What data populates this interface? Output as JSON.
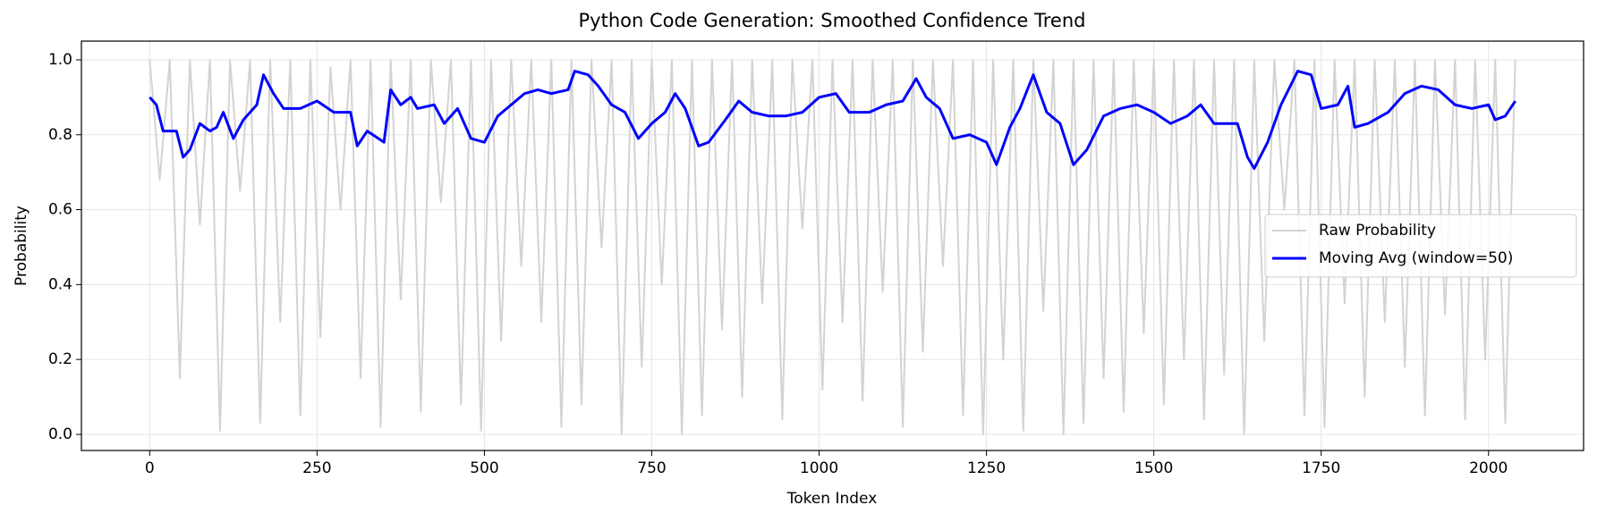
{
  "chart_data": {
    "type": "line",
    "title": "Python Code Generation: Smoothed Confidence Trend",
    "xlabel": "Token Index",
    "ylabel": "Probability",
    "xlim": [
      -102,
      2142
    ],
    "ylim": [
      -0.043,
      1.05
    ],
    "xticks": [
      0,
      250,
      500,
      750,
      1000,
      1250,
      1500,
      1750,
      2000
    ],
    "yticks": [
      {
        "value": 0,
        "label": "0.0"
      },
      0.2,
      0.4,
      0.6,
      0.8,
      {
        "value": 1,
        "label": "1.0"
      }
    ],
    "grid": true,
    "legend": "center right",
    "series": [
      {
        "name": "Raw Probability",
        "color": "#d3d3d3",
        "x": [
          0,
          15,
          30,
          45,
          60,
          75,
          90,
          105,
          120,
          135,
          150,
          165,
          180,
          195,
          210,
          225,
          240,
          255,
          270,
          285,
          300,
          315,
          330,
          345,
          360,
          375,
          390,
          405,
          420,
          435,
          450,
          465,
          480,
          495,
          510,
          525,
          540,
          555,
          570,
          585,
          600,
          615,
          630,
          645,
          660,
          675,
          690,
          705,
          720,
          735,
          750,
          765,
          780,
          795,
          810,
          825,
          840,
          855,
          870,
          885,
          900,
          915,
          930,
          945,
          960,
          975,
          990,
          1005,
          1020,
          1035,
          1050,
          1065,
          1080,
          1095,
          1110,
          1125,
          1140,
          1155,
          1170,
          1185,
          1200,
          1215,
          1230,
          1245,
          1260,
          1275,
          1290,
          1305,
          1320,
          1335,
          1350,
          1365,
          1380,
          1395,
          1410,
          1425,
          1440,
          1455,
          1470,
          1485,
          1500,
          1515,
          1530,
          1545,
          1560,
          1575,
          1590,
          1605,
          1620,
          1635,
          1650,
          1665,
          1680,
          1695,
          1710,
          1725,
          1740,
          1755,
          1770,
          1785,
          1800,
          1815,
          1830,
          1845,
          1860,
          1875,
          1890,
          1905,
          1920,
          1935,
          1950,
          1965,
          1980,
          1995,
          2010,
          2025,
          2040
        ],
        "values": [
          1.0,
          0.68,
          1.0,
          0.15,
          1.0,
          0.56,
          1.0,
          0.01,
          1.0,
          0.65,
          1.0,
          0.03,
          1.0,
          0.3,
          1.0,
          0.05,
          1.0,
          0.26,
          0.98,
          0.6,
          1.0,
          0.15,
          1.0,
          0.02,
          1.0,
          0.36,
          1.0,
          0.06,
          1.0,
          0.62,
          1.0,
          0.08,
          1.0,
          0.01,
          1.0,
          0.25,
          1.0,
          0.45,
          1.0,
          0.3,
          1.0,
          0.02,
          1.0,
          0.08,
          1.0,
          0.5,
          1.0,
          0.0,
          1.0,
          0.18,
          1.0,
          0.4,
          1.0,
          0.0,
          1.0,
          0.05,
          1.0,
          0.28,
          1.0,
          0.1,
          1.0,
          0.35,
          1.0,
          0.04,
          1.0,
          0.55,
          1.0,
          0.12,
          1.0,
          0.3,
          1.0,
          0.09,
          1.0,
          0.38,
          1.0,
          0.02,
          1.0,
          0.22,
          1.0,
          0.45,
          1.0,
          0.05,
          1.0,
          0.0,
          1.0,
          0.2,
          1.0,
          0.01,
          1.0,
          0.33,
          1.0,
          0.0,
          1.0,
          0.03,
          1.0,
          0.15,
          1.0,
          0.06,
          1.0,
          0.27,
          1.0,
          0.08,
          1.0,
          0.2,
          1.0,
          0.04,
          1.0,
          0.16,
          1.0,
          0.0,
          1.0,
          0.25,
          1.0,
          0.6,
          1.0,
          0.05,
          1.0,
          0.02,
          1.0,
          0.35,
          1.0,
          0.1,
          1.0,
          0.3,
          1.0,
          0.18,
          1.0,
          0.05,
          1.0,
          0.32,
          1.0,
          0.04,
          1.0,
          0.2,
          1.0,
          0.03,
          1.0
        ]
      },
      {
        "name": "Moving Avg (window=50)",
        "color": "#0000ff",
        "x": [
          0,
          10,
          20,
          40,
          50,
          60,
          75,
          90,
          100,
          110,
          125,
          140,
          160,
          170,
          185,
          200,
          225,
          250,
          275,
          300,
          310,
          325,
          350,
          360,
          375,
          390,
          400,
          425,
          440,
          460,
          480,
          500,
          520,
          540,
          560,
          580,
          600,
          625,
          635,
          655,
          670,
          690,
          710,
          730,
          750,
          770,
          785,
          800,
          820,
          835,
          860,
          880,
          900,
          925,
          950,
          975,
          1000,
          1025,
          1045,
          1075,
          1100,
          1125,
          1145,
          1160,
          1180,
          1200,
          1225,
          1250,
          1265,
          1285,
          1300,
          1320,
          1340,
          1360,
          1380,
          1400,
          1425,
          1450,
          1475,
          1500,
          1525,
          1550,
          1570,
          1590,
          1625,
          1640,
          1650,
          1670,
          1690,
          1715,
          1735,
          1750,
          1775,
          1790,
          1800,
          1820,
          1850,
          1875,
          1900,
          1925,
          1950,
          1975,
          2000,
          2010,
          2025,
          2040
        ],
        "values": [
          0.9,
          0.88,
          0.81,
          0.81,
          0.74,
          0.76,
          0.83,
          0.81,
          0.82,
          0.86,
          0.79,
          0.84,
          0.88,
          0.96,
          0.91,
          0.87,
          0.87,
          0.89,
          0.86,
          0.86,
          0.77,
          0.81,
          0.78,
          0.92,
          0.88,
          0.9,
          0.87,
          0.88,
          0.83,
          0.87,
          0.79,
          0.78,
          0.85,
          0.88,
          0.91,
          0.92,
          0.91,
          0.92,
          0.97,
          0.96,
          0.93,
          0.88,
          0.86,
          0.79,
          0.83,
          0.86,
          0.91,
          0.87,
          0.77,
          0.78,
          0.84,
          0.89,
          0.86,
          0.85,
          0.85,
          0.86,
          0.9,
          0.91,
          0.86,
          0.86,
          0.88,
          0.89,
          0.95,
          0.9,
          0.87,
          0.79,
          0.8,
          0.78,
          0.72,
          0.82,
          0.87,
          0.96,
          0.86,
          0.83,
          0.72,
          0.76,
          0.85,
          0.87,
          0.88,
          0.86,
          0.83,
          0.85,
          0.88,
          0.83,
          0.83,
          0.74,
          0.71,
          0.78,
          0.88,
          0.97,
          0.96,
          0.87,
          0.88,
          0.93,
          0.82,
          0.83,
          0.86,
          0.91,
          0.93,
          0.92,
          0.88,
          0.87,
          0.88,
          0.84,
          0.85,
          0.89
        ]
      }
    ]
  }
}
